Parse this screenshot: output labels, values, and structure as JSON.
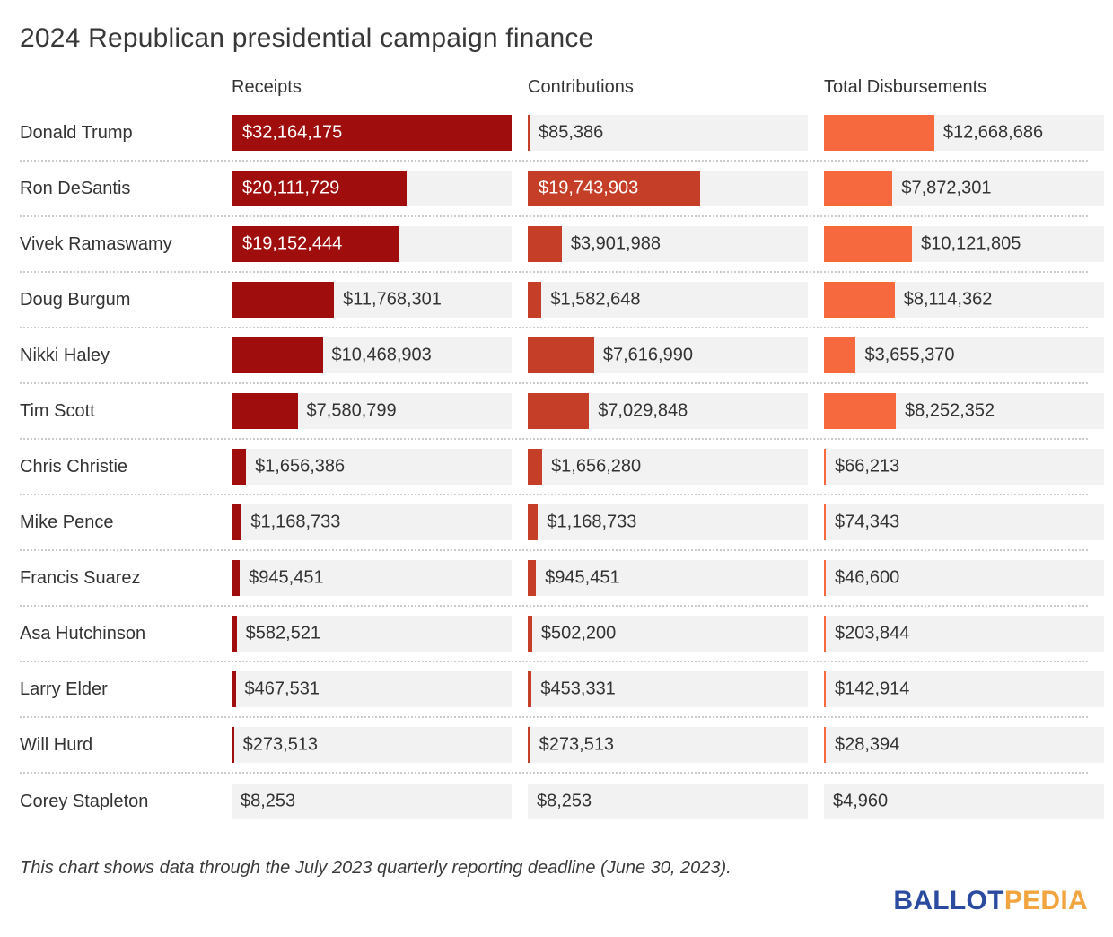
{
  "title": "2024 Republican presidential campaign finance",
  "columns": [
    "Receipts",
    "Contributions",
    "Total Disbursements"
  ],
  "footnote": "This chart shows data through the July 2023 quarterly reporting deadline (June 30, 2023).",
  "logo": {
    "part1": "BALLOT",
    "part2": "PEDIA",
    "color1": "#2b4ba1",
    "color2": "#f2a43e"
  },
  "colors": {
    "receipts": "#a00d0d",
    "contributions": "#c53e27",
    "disbursements": "#f6693f",
    "track": "#f2f2f2",
    "text": "#333333",
    "bar_label_inside": "#ffffff",
    "separator": "#cbcbcb"
  },
  "chart_data": {
    "type": "bar",
    "orientation": "horizontal",
    "title": "2024 Republican presidential campaign finance",
    "xlim": [
      0,
      32164175
    ],
    "grid": false,
    "legend_position": "column-headers-top",
    "categories": [
      "Donald Trump",
      "Ron DeSantis",
      "Vivek Ramaswamy",
      "Doug Burgum",
      "Nikki Haley",
      "Tim Scott",
      "Chris Christie",
      "Mike Pence",
      "Francis Suarez",
      "Asa Hutchinson",
      "Larry Elder",
      "Will Hurd",
      "Corey Stapleton"
    ],
    "series": [
      {
        "name": "Receipts",
        "color": "#a00d0d",
        "values": [
          32164175,
          20111729,
          19152444,
          11768301,
          10468903,
          7580799,
          1656386,
          1168733,
          945451,
          582521,
          467531,
          273513,
          8253
        ],
        "labels": [
          "$32,164,175",
          "$20,111,729",
          "$19,152,444",
          "$11,768,301",
          "$10,468,903",
          "$7,580,799",
          "$1,656,386",
          "$1,168,733",
          "$945,451",
          "$582,521",
          "$467,531",
          "$273,513",
          "$8,253"
        ]
      },
      {
        "name": "Contributions",
        "color": "#c53e27",
        "values": [
          85386,
          19743903,
          3901988,
          1582648,
          7616990,
          7029848,
          1656280,
          1168733,
          945451,
          502200,
          453331,
          273513,
          8253
        ],
        "labels": [
          "$85,386",
          "$19,743,903",
          "$3,901,988",
          "$1,582,648",
          "$7,616,990",
          "$7,029,848",
          "$1,656,280",
          "$1,168,733",
          "$945,451",
          "$502,200",
          "$453,331",
          "$273,513",
          "$8,253"
        ]
      },
      {
        "name": "Total Disbursements",
        "color": "#f6693f",
        "values": [
          12668686,
          7872301,
          10121805,
          8114362,
          3655370,
          8252352,
          66213,
          74343,
          46600,
          203844,
          142914,
          28394,
          4960
        ],
        "labels": [
          "$12,668,686",
          "$7,872,301",
          "$10,121,805",
          "$8,114,362",
          "$3,655,370",
          "$8,252,352",
          "$66,213",
          "$74,343",
          "$46,600",
          "$203,844",
          "$142,914",
          "$28,394",
          "$4,960"
        ]
      }
    ]
  }
}
